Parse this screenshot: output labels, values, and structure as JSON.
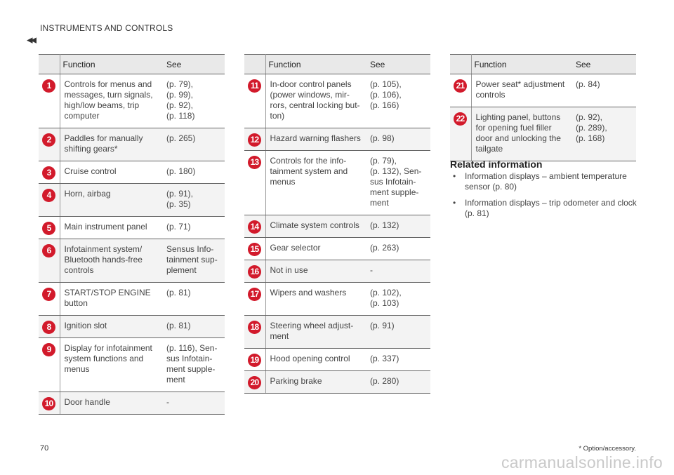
{
  "header": "INSTRUMENTS AND CONTROLS",
  "back_icon": "◂◂",
  "columns": {
    "function": "Function",
    "see": "See"
  },
  "tables": [
    {
      "rows": [
        {
          "num": "1",
          "function": "Controls for menus and\nmessages, turn signals,\nhigh/low beams, trip\ncomputer",
          "see": "(p. 79),\n(p. 99),\n(p. 92),\n(p. 118)"
        },
        {
          "num": "2",
          "function": "Paddles for manually\nshifting gears*",
          "see": "(p. 265)"
        },
        {
          "num": "3",
          "function": "Cruise control",
          "see": "(p. 180)"
        },
        {
          "num": "4",
          "function": "Horn, airbag",
          "see": "(p. 91),\n(p. 35)"
        },
        {
          "num": "5",
          "function": "Main instrument panel",
          "see": "(p. 71)"
        },
        {
          "num": "6",
          "function": "Infotainment system/\nBluetooth hands-free\ncontrols",
          "see": "Sensus Info-\ntainment sup-\nplement"
        },
        {
          "num": "7",
          "function": "START/STOP ENGINE\nbutton",
          "see": "(p. 81)"
        },
        {
          "num": "8",
          "function": "Ignition slot",
          "see": "(p. 81)"
        },
        {
          "num": "9",
          "function": "Display for infotainment\nsystem functions and\nmenus",
          "see": "(p. 116), Sen-\nsus Infotain-\nment supple-\nment"
        },
        {
          "num": "10",
          "function": "Door handle",
          "see": "-"
        }
      ]
    },
    {
      "rows": [
        {
          "num": "11",
          "function": "In-door control panels\n(power windows, mir-\nrors, central locking but-\nton)",
          "see": "(p. 105),\n(p. 106),\n(p. 166)"
        },
        {
          "num": "12",
          "function": "Hazard warning flashers",
          "see": "(p. 98)"
        },
        {
          "num": "13",
          "function": "Controls for the info-\ntainment system and\nmenus",
          "see": "(p. 79),\n(p. 132), Sen-\nsus Infotain-\nment supple-\nment"
        },
        {
          "num": "14",
          "function": "Climate system controls",
          "see": "(p. 132)"
        },
        {
          "num": "15",
          "function": "Gear selector",
          "see": "(p. 263)"
        },
        {
          "num": "16",
          "function": "Not in use",
          "see": "-"
        },
        {
          "num": "17",
          "function": "Wipers and washers",
          "see": "(p. 102),\n(p. 103)"
        },
        {
          "num": "18",
          "function": "Steering wheel adjust-\nment",
          "see": "(p. 91)"
        },
        {
          "num": "19",
          "function": "Hood opening control",
          "see": "(p. 337)"
        },
        {
          "num": "20",
          "function": "Parking brake",
          "see": "(p. 280)"
        }
      ]
    },
    {
      "rows": [
        {
          "num": "21",
          "function": "Power seat* adjustment\ncontrols",
          "see": "(p. 84)"
        },
        {
          "num": "22",
          "function": "Lighting panel, buttons\nfor opening fuel filler\ndoor and unlocking the\ntailgate",
          "see": "(p. 92),\n(p. 289),\n(p. 168)"
        }
      ]
    }
  ],
  "related": {
    "title": "Related information",
    "bullet": "•",
    "items": [
      "Information displays – ambient temperature sensor (p. 80)",
      "Information displays – trip odometer and clock (p. 81)"
    ]
  },
  "footer": {
    "page_number": "70",
    "footnote": "* Option/accessory.",
    "watermark": "carmanualsonline.info"
  },
  "colors": {
    "badge": "#d21a2b",
    "header_bg": "#e9e9e9"
  }
}
